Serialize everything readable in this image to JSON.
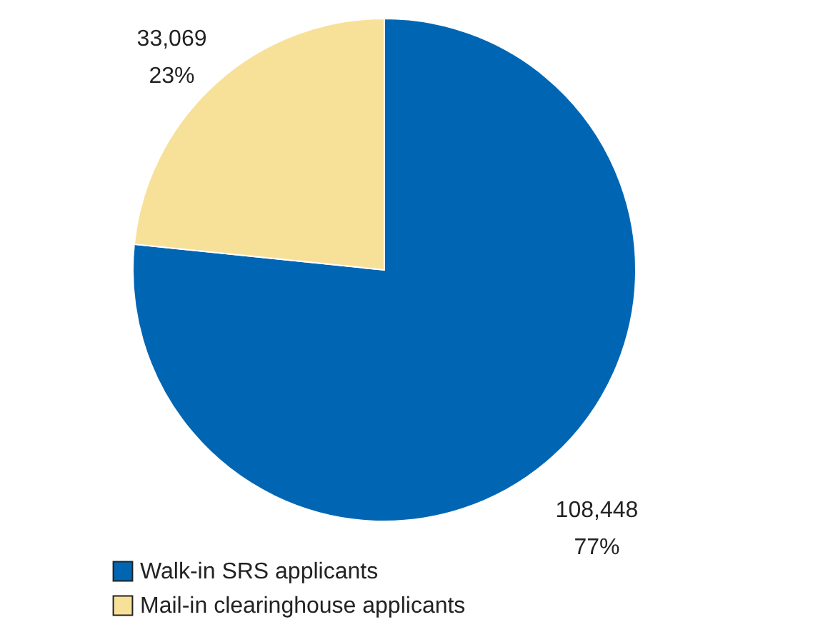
{
  "chart_data": {
    "type": "pie",
    "categories": [
      "Walk-in SRS applicants",
      "Mail-in clearinghouse applicants"
    ],
    "values": [
      108448,
      33069
    ],
    "colors": [
      "#0066b3",
      "#f7e199"
    ],
    "value_labels": [
      "108,448\n77%",
      "33,069\n23%"
    ],
    "legend": "bottom left"
  }
}
